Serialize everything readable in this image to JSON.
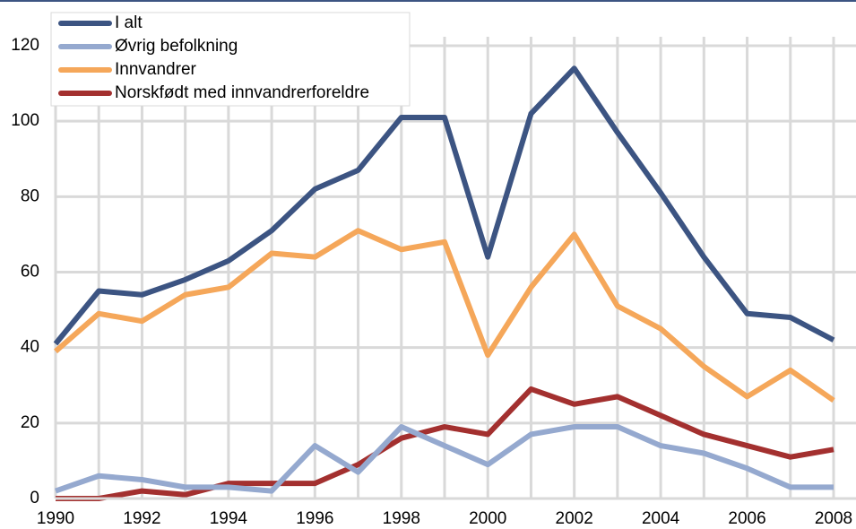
{
  "chart_data": {
    "type": "line",
    "categories": [
      "1990",
      null,
      "1992",
      null,
      "1994",
      null,
      "1996",
      null,
      "1998",
      null,
      "2000",
      null,
      "2002",
      null,
      "2004",
      null,
      "2006",
      null,
      "2008"
    ],
    "series": [
      {
        "name": "I alt",
        "color": "#3c5482",
        "values": [
          41,
          55,
          54,
          58,
          63,
          71,
          82,
          87,
          101,
          101,
          64,
          102,
          114,
          97,
          81,
          64,
          49,
          48,
          42
        ]
      },
      {
        "name": "Øvrig befolkning",
        "color": "#95a9cf",
        "values": [
          2,
          6,
          5,
          3,
          3,
          2,
          14,
          7,
          19,
          14,
          9,
          17,
          19,
          19,
          14,
          12,
          8,
          3,
          3
        ]
      },
      {
        "name": "Innvandrer",
        "color": "#f5a75a",
        "values": [
          39,
          49,
          47,
          54,
          56,
          65,
          64,
          71,
          66,
          68,
          38,
          56,
          70,
          51,
          45,
          35,
          27,
          34,
          26
        ]
      },
      {
        "name": "Norskfødt med innvandrerforeldre",
        "color": "#a3302f",
        "values": [
          0,
          0,
          2,
          1,
          4,
          4,
          4,
          9,
          16,
          19,
          17,
          29,
          25,
          27,
          22,
          17,
          14,
          11,
          13
        ]
      }
    ],
    "ylim": [
      0,
      120
    ],
    "yticks": [
      0,
      20,
      40,
      60,
      80,
      100,
      120
    ],
    "grid": true,
    "legend": "top-left"
  }
}
